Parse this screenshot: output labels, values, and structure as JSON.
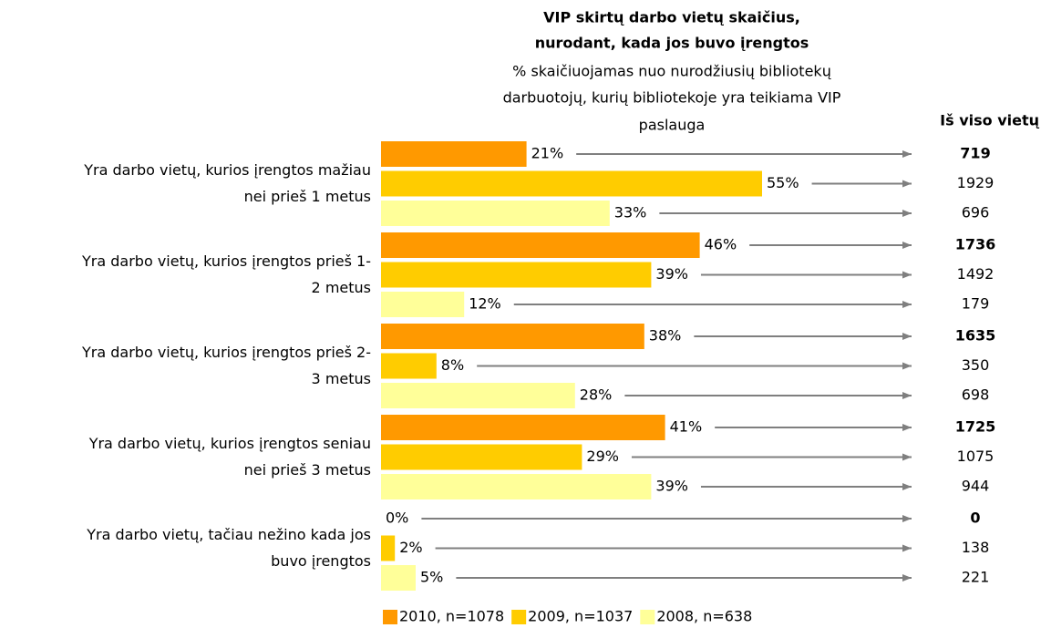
{
  "chart_data": {
    "type": "bar",
    "orientation": "horizontal",
    "title": [
      "VIP skirtų darbo vietų skaičius,",
      "nurodant, kada jos buvo įrengtos"
    ],
    "subtitle": [
      "% skaičiuojamas nuo nurodžiusių bibliotekų",
      "darbuotojų, kurių bibliotekoje yra teikiama VIP",
      "paslauga"
    ],
    "totals_header": "Iš viso vietų",
    "categories": [
      [
        "Yra darbo vietų, kurios įrengtos mažiau",
        "nei prieš 1 metus"
      ],
      [
        "Yra darbo vietų, kurios įrengtos prieš 1-",
        "2 metus"
      ],
      [
        "Yra darbo vietų, kurios įrengtos prieš 2-",
        "3 metus"
      ],
      [
        "Yra darbo vietų, kurios įrengtos seniau",
        "nei prieš 3 metus"
      ],
      [
        "Yra darbo vietų, tačiau nežino kada jos",
        "buvo įrengtos"
      ]
    ],
    "series": [
      {
        "name": "2010, n=1078",
        "color": "#ff9900",
        "font_weight": "bold",
        "values": [
          21,
          46,
          38,
          41,
          0
        ],
        "value_labels": [
          "21%",
          "46%",
          "38%",
          "41%",
          "0%"
        ],
        "totals": [
          719,
          1736,
          1635,
          1725,
          0
        ]
      },
      {
        "name": "2009, n=1037",
        "color": "#ffcc00",
        "font_weight": "normal",
        "values": [
          55,
          39,
          8,
          29,
          2
        ],
        "value_labels": [
          "55%",
          "39%",
          "8%",
          "29%",
          "2%"
        ],
        "totals": [
          1929,
          1492,
          350,
          1075,
          138
        ]
      },
      {
        "name": "2008, n=638",
        "color": "#ffff99",
        "font_weight": "normal",
        "values": [
          33,
          12,
          28,
          39,
          5
        ],
        "value_labels": [
          "33%",
          "12%",
          "28%",
          "39%",
          "5%"
        ],
        "totals": [
          696,
          179,
          698,
          944,
          221
        ]
      }
    ],
    "xlim": [
      0,
      60
    ],
    "arrow_color": "#7f7f7f"
  }
}
